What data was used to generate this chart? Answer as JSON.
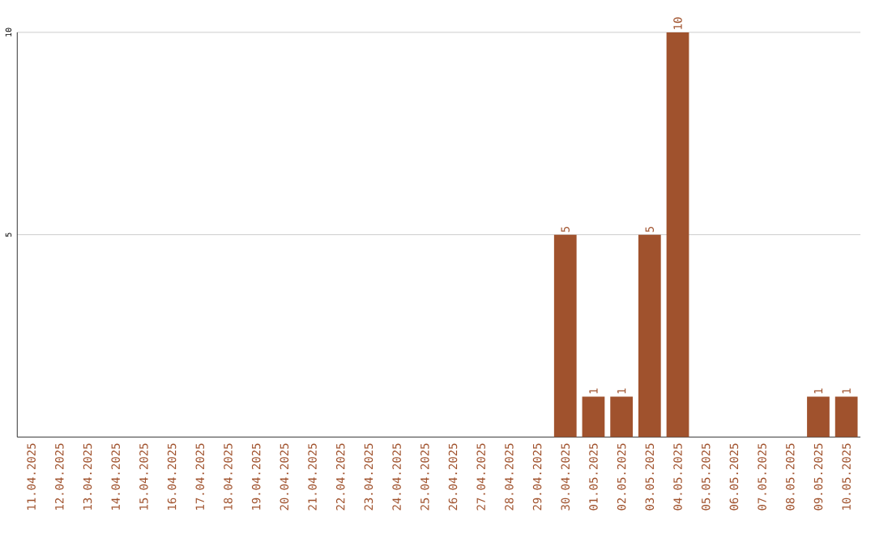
{
  "chart_data": {
    "type": "bar",
    "categories": [
      "11.04.2025",
      "12.04.2025",
      "13.04.2025",
      "14.04.2025",
      "15.04.2025",
      "16.04.2025",
      "17.04.2025",
      "18.04.2025",
      "19.04.2025",
      "20.04.2025",
      "21.04.2025",
      "22.04.2025",
      "23.04.2025",
      "24.04.2025",
      "25.04.2025",
      "26.04.2025",
      "27.04.2025",
      "28.04.2025",
      "29.04.2025",
      "30.04.2025",
      "01.05.2025",
      "02.05.2025",
      "03.05.2025",
      "04.05.2025",
      "05.05.2025",
      "06.05.2025",
      "07.05.2025",
      "08.05.2025",
      "09.05.2025",
      "10.05.2025"
    ],
    "values": [
      0,
      0,
      0,
      0,
      0,
      0,
      0,
      0,
      0,
      0,
      0,
      0,
      0,
      0,
      0,
      0,
      0,
      0,
      0,
      5,
      1,
      1,
      5,
      10,
      0,
      0,
      0,
      0,
      1,
      1
    ],
    "value_labels": [
      null,
      null,
      null,
      null,
      null,
      null,
      null,
      null,
      null,
      null,
      null,
      null,
      null,
      null,
      null,
      null,
      null,
      null,
      null,
      "5",
      "1",
      "1",
      "5",
      "10",
      null,
      null,
      null,
      null,
      "1",
      "1"
    ],
    "color": "#a0522d",
    "ylim": [
      0,
      10
    ],
    "yticks": [
      5,
      10
    ],
    "grid": "y"
  }
}
